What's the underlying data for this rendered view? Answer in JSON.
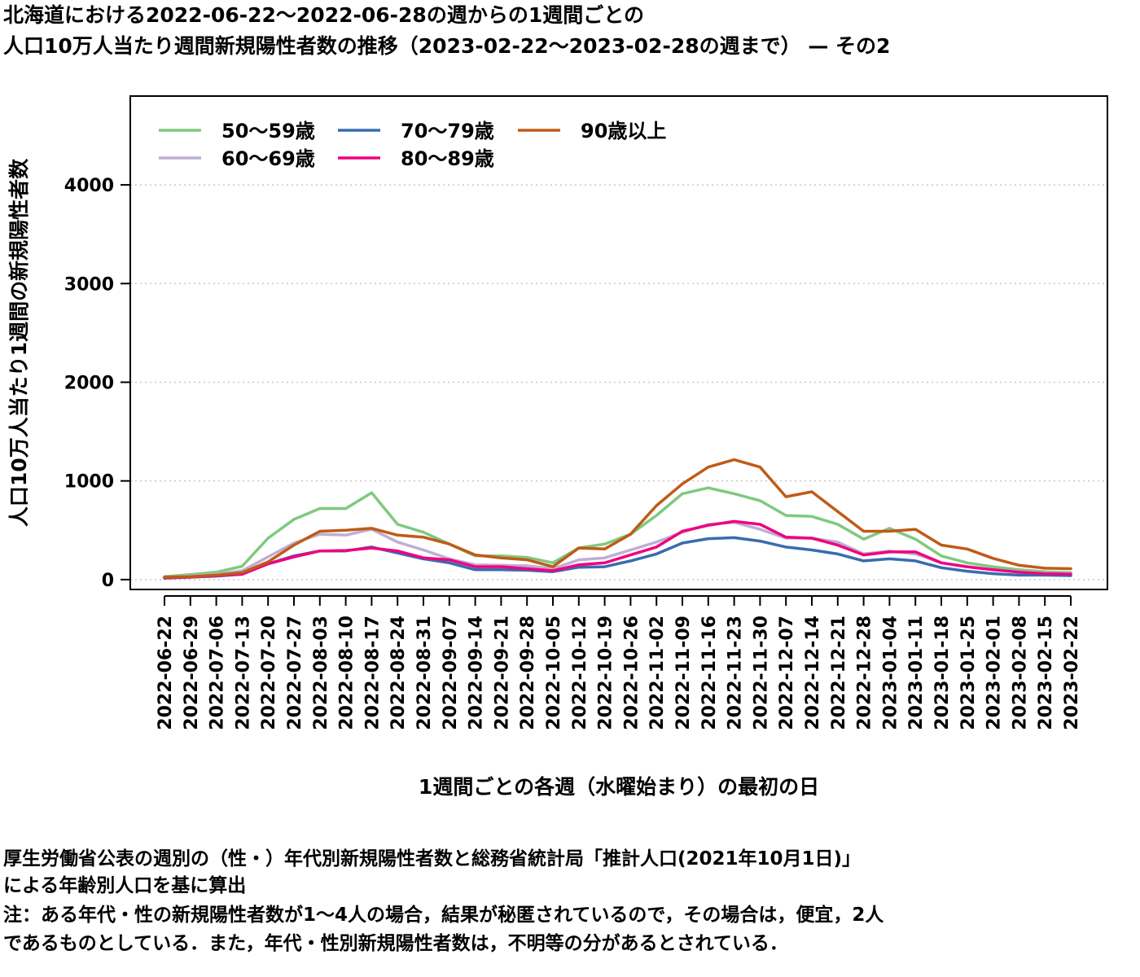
{
  "title": {
    "line1": "北海道における2022-06-22〜2022-06-28の週からの1週間ごとの",
    "line2": "人口10万人当たり週間新規陽性者数の推移（2023-02-22〜2023-02-28の週まで） — その2"
  },
  "notes": {
    "line1": "厚生労働省公表の週別の（性・）年代別新規陽性者数と総務省統計局「推計人口(2021年10月1日)」",
    "line2": "による年齢別人口を基に算出",
    "line3": "注：ある年代・性の新規陽性者数が1〜4人の場合，結果が秘匿されているので，その場合は，便宜，2人",
    "line4": "であるものとしている．また，年代・性別新規陽性者数は，不明等の分があるとされている．"
  },
  "chart_data": {
    "type": "line",
    "xlabel": "1週間ごとの各週（水曜始まり）の最初の日",
    "ylabel": "人口10万人当たり1週間の新規陽性者数",
    "ylim": [
      -100,
      4900
    ],
    "yticks": [
      0,
      1000,
      2000,
      3000,
      4000
    ],
    "grid": "horizontal dotted",
    "legend_position": "top-left",
    "x": [
      "2022-06-22",
      "2022-06-29",
      "2022-07-06",
      "2022-07-13",
      "2022-07-20",
      "2022-07-27",
      "2022-08-03",
      "2022-08-10",
      "2022-08-17",
      "2022-08-24",
      "2022-08-31",
      "2022-09-07",
      "2022-09-14",
      "2022-09-21",
      "2022-09-28",
      "2022-10-05",
      "2022-10-12",
      "2022-10-19",
      "2022-10-26",
      "2022-11-02",
      "2022-11-09",
      "2022-11-16",
      "2022-11-23",
      "2022-11-30",
      "2022-12-07",
      "2022-12-14",
      "2022-12-21",
      "2022-12-28",
      "2023-01-04",
      "2023-01-11",
      "2023-01-18",
      "2023-01-25",
      "2023-02-01",
      "2023-02-08",
      "2023-02-15",
      "2023-02-22"
    ],
    "series": [
      {
        "name": "50〜59歳",
        "color": "#7fc97f",
        "values": [
          30,
          50,
          75,
          135,
          420,
          610,
          720,
          720,
          880,
          560,
          480,
          360,
          240,
          240,
          225,
          170,
          320,
          360,
          460,
          650,
          870,
          930,
          870,
          800,
          650,
          640,
          560,
          410,
          520,
          410,
          240,
          170,
          130,
          100,
          80,
          70
        ]
      },
      {
        "name": "60〜69歳",
        "color": "#beaed4",
        "values": [
          20,
          35,
          55,
          90,
          230,
          370,
          460,
          450,
          510,
          380,
          300,
          210,
          150,
          145,
          140,
          110,
          200,
          220,
          300,
          380,
          480,
          560,
          580,
          510,
          420,
          420,
          380,
          260,
          290,
          260,
          170,
          130,
          100,
          80,
          65,
          60
        ]
      },
      {
        "name": "70〜79歳",
        "color": "#386cb0",
        "values": [
          15,
          25,
          35,
          55,
          160,
          240,
          290,
          290,
          330,
          270,
          210,
          170,
          100,
          100,
          95,
          80,
          125,
          130,
          190,
          260,
          370,
          415,
          425,
          390,
          330,
          300,
          260,
          190,
          210,
          190,
          120,
          85,
          60,
          45,
          45,
          40
        ]
      },
      {
        "name": "80〜89歳",
        "color": "#f0027f",
        "values": [
          20,
          25,
          40,
          55,
          160,
          230,
          290,
          295,
          320,
          290,
          220,
          200,
          130,
          130,
          110,
          90,
          150,
          170,
          250,
          330,
          490,
          550,
          590,
          560,
          430,
          420,
          350,
          250,
          280,
          280,
          170,
          130,
          100,
          75,
          60,
          55
        ]
      },
      {
        "name": "90歳以上",
        "color": "#bf5b17",
        "values": [
          25,
          30,
          45,
          70,
          180,
          350,
          490,
          500,
          520,
          450,
          430,
          360,
          250,
          220,
          200,
          130,
          320,
          310,
          460,
          750,
          970,
          1140,
          1215,
          1140,
          840,
          890,
          690,
          490,
          490,
          510,
          350,
          310,
          215,
          145,
          115,
          110
        ]
      }
    ]
  }
}
